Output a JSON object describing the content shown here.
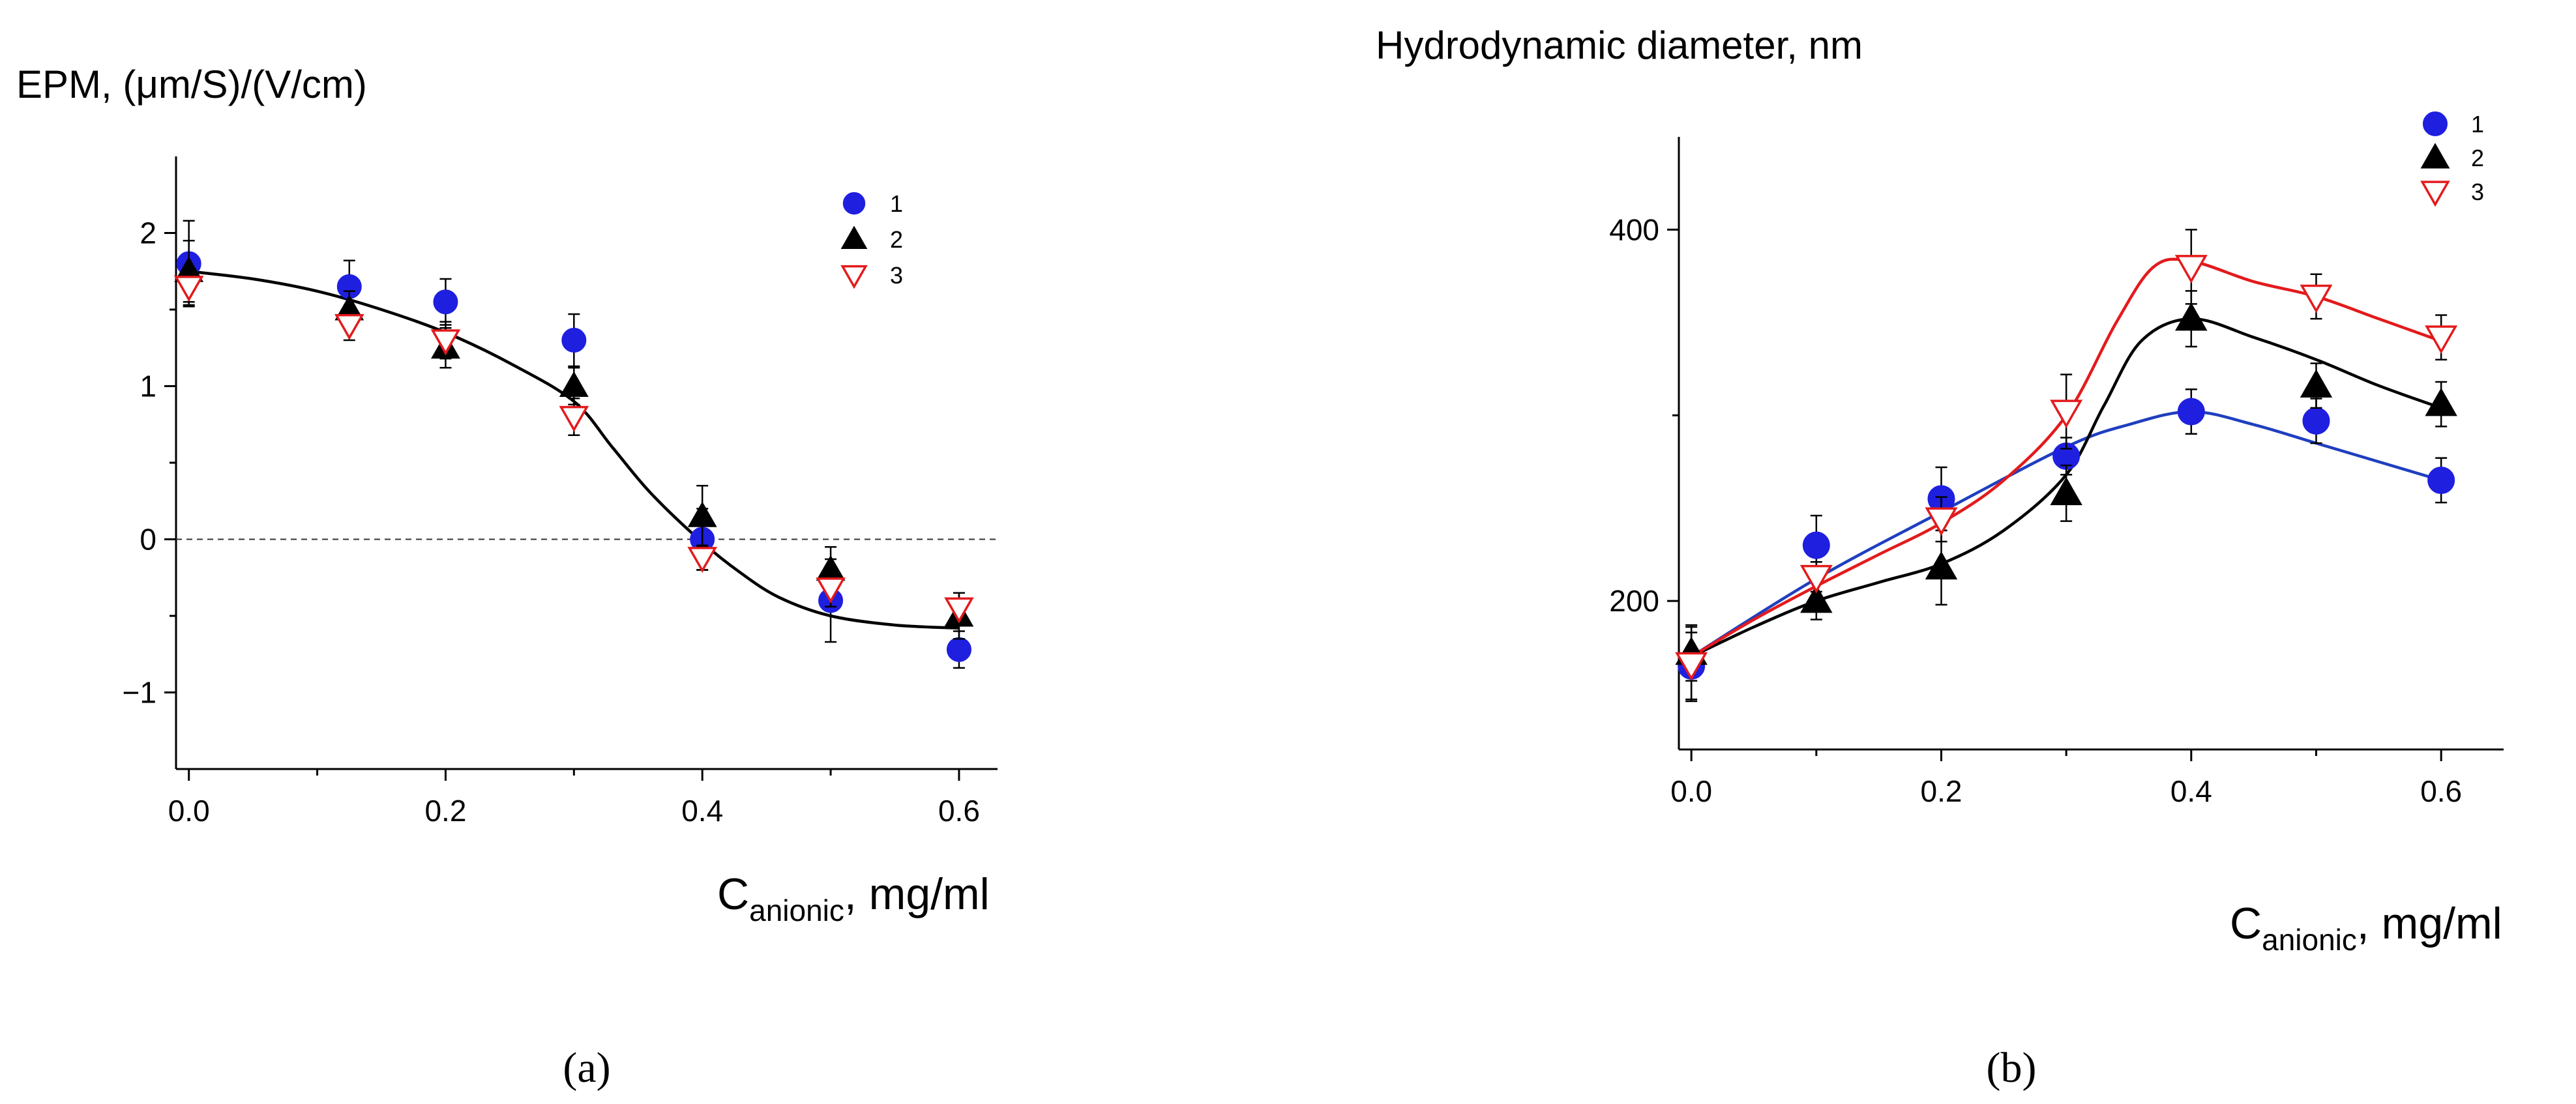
{
  "chart_data": [
    {
      "type": "scatter",
      "panel_label": "(a)",
      "ylabel": "EPM, (μm/S)/(V/cm)",
      "xlabel_main": "C",
      "xlabel_sub": "anionic",
      "xlabel_tail": ", mg/ml",
      "xlim": [
        -0.01,
        0.63
      ],
      "ylim": [
        -1.5,
        2.5
      ],
      "xticks": [
        0.0,
        0.2,
        0.4,
        0.6
      ],
      "xtick_labels": [
        "0.0",
        "0.2",
        "0.4",
        "0.6"
      ],
      "yticks": [
        -1,
        0,
        1,
        2
      ],
      "ytick_labels": [
        "−1",
        "0",
        "1",
        "2"
      ],
      "minor_xticks": [
        0.1,
        0.3,
        0.5
      ],
      "minor_yticks": [
        -0.5,
        0.5,
        1.5
      ],
      "zero_line": 0,
      "legend_position": "top-right",
      "series": [
        {
          "name": "1",
          "marker": "circle",
          "color": "#1f1fe0",
          "x": [
            0.0,
            0.125,
            0.2,
            0.3,
            0.4,
            0.5,
            0.6
          ],
          "y": [
            1.8,
            1.65,
            1.55,
            1.3,
            0.0,
            -0.4,
            -0.72
          ],
          "err": [
            0.28,
            0.17,
            0.15,
            0.17,
            0.2,
            0.27,
            0.12
          ]
        },
        {
          "name": "2",
          "marker": "triangle-up",
          "color": "#000000",
          "x": [
            0.0,
            0.125,
            0.2,
            0.3,
            0.4,
            0.5,
            0.6
          ],
          "y": [
            1.75,
            1.5,
            1.25,
            1.0,
            0.15,
            -0.2,
            -0.5
          ],
          "err": [
            0.2,
            0.12,
            0.13,
            0.12,
            0.2,
            0.15,
            0.15
          ]
        },
        {
          "name": "3",
          "marker": "triangle-down-open",
          "color": "#e31a1c",
          "x": [
            0.0,
            0.125,
            0.2,
            0.3,
            0.4,
            0.5,
            0.6
          ],
          "y": [
            1.65,
            1.4,
            1.3,
            0.8,
            -0.12,
            -0.32,
            -0.45
          ],
          "err": [
            0.12,
            0.1,
            0.12,
            0.12,
            0.08,
            0.12,
            0.1
          ]
        }
      ],
      "fit_curves": [
        {
          "color": "#000000",
          "x": [
            0.0,
            0.05,
            0.1,
            0.15,
            0.2,
            0.25,
            0.3,
            0.33,
            0.36,
            0.4,
            0.43,
            0.46,
            0.5,
            0.55,
            0.6
          ],
          "y": [
            1.75,
            1.7,
            1.62,
            1.5,
            1.35,
            1.15,
            0.9,
            0.6,
            0.3,
            -0.02,
            -0.22,
            -0.38,
            -0.5,
            -0.56,
            -0.58
          ]
        }
      ]
    },
    {
      "type": "scatter",
      "panel_label": "(b)",
      "ylabel": "Hydrodynamic diameter, nm",
      "xlabel_main": "C",
      "xlabel_sub": "anionic",
      "xlabel_tail": ", mg/ml",
      "xlim": [
        -0.01,
        0.65
      ],
      "ylim": [
        120,
        450
      ],
      "xticks": [
        0.0,
        0.2,
        0.4,
        0.6
      ],
      "xtick_labels": [
        "0.0",
        "0.2",
        "0.4",
        "0.6"
      ],
      "yticks": [
        200,
        400
      ],
      "ytick_labels": [
        "200",
        "400"
      ],
      "minor_xticks": [
        0.1,
        0.3,
        0.5
      ],
      "minor_yticks": [
        300
      ],
      "legend_position": "top-right",
      "series": [
        {
          "name": "1",
          "marker": "circle",
          "color": "#1f1fe0",
          "x": [
            0.0,
            0.1,
            0.2,
            0.3,
            0.4,
            0.5,
            0.6
          ],
          "y": [
            165,
            230,
            255,
            278,
            302,
            297,
            265
          ],
          "err": [
            18,
            16,
            17,
            10,
            12,
            12,
            12
          ]
        },
        {
          "name": "2",
          "marker": "triangle-up",
          "color": "#000000",
          "x": [
            0.0,
            0.1,
            0.2,
            0.3,
            0.4,
            0.5,
            0.6
          ],
          "y": [
            172,
            200,
            218,
            258,
            352,
            316,
            306
          ],
          "err": [
            15,
            10,
            20,
            15,
            15,
            12,
            12
          ]
        },
        {
          "name": "3",
          "marker": "triangle-down-open",
          "color": "#e31a1c",
          "x": [
            0.0,
            0.1,
            0.2,
            0.3,
            0.4,
            0.5,
            0.6
          ],
          "y": [
            166,
            213,
            244,
            302,
            380,
            364,
            342
          ],
          "err": [
            20,
            8,
            12,
            20,
            20,
            12,
            12
          ]
        }
      ],
      "fit_curves": [
        {
          "color": "#1f3fbf",
          "x": [
            0.0,
            0.1,
            0.2,
            0.3,
            0.35,
            0.4,
            0.45,
            0.5,
            0.55,
            0.6
          ],
          "y": [
            170,
            212,
            248,
            283,
            295,
            302,
            295,
            285,
            275,
            265
          ]
        },
        {
          "color": "#000000",
          "x": [
            0.0,
            0.05,
            0.1,
            0.15,
            0.2,
            0.25,
            0.3,
            0.33,
            0.36,
            0.4,
            0.45,
            0.5,
            0.55,
            0.6
          ],
          "y": [
            170,
            186,
            200,
            210,
            220,
            238,
            268,
            305,
            340,
            352,
            342,
            330,
            316,
            304
          ]
        },
        {
          "color": "#e31a1c",
          "x": [
            0.0,
            0.05,
            0.1,
            0.15,
            0.2,
            0.25,
            0.3,
            0.34,
            0.37,
            0.4,
            0.45,
            0.5,
            0.55,
            0.6
          ],
          "y": [
            170,
            190,
            208,
            225,
            242,
            265,
            300,
            350,
            380,
            383,
            372,
            364,
            352,
            340
          ]
        }
      ]
    }
  ]
}
